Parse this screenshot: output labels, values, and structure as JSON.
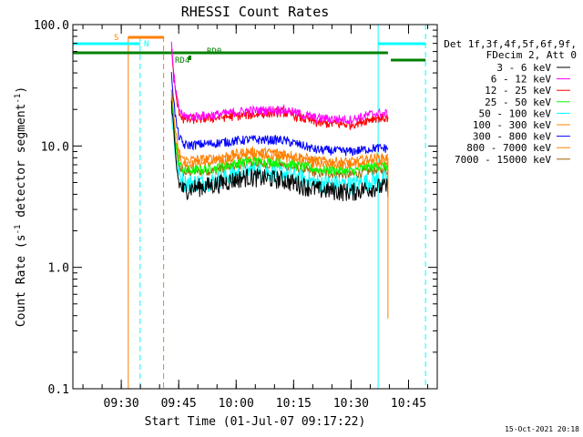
{
  "chart_data": {
    "type": "line",
    "title": "RHESSI Count Rates",
    "xlabel": "Start Time (01-Jul-07 09:17:22)",
    "ylabel_main": "Count Rate (s",
    "ylabel_sup": "-1",
    "ylabel_mid": " detector segment",
    "ylabel_sup2": "-1",
    "ylabel_end": ")",
    "yscale": "log",
    "ylim": [
      0.1,
      100.0
    ],
    "yticks": [
      {
        "value": 0.1,
        "label": "0.1"
      },
      {
        "value": 1.0,
        "label": "1.0"
      },
      {
        "value": 10.0,
        "label": "10.0"
      },
      {
        "value": 100.0,
        "label": "100.0"
      }
    ],
    "xlim": [
      "09:17:22",
      "10:52:30"
    ],
    "xticks": [
      {
        "time": "09:30",
        "label": "09:30"
      },
      {
        "time": "09:45",
        "label": "09:45"
      },
      {
        "time": "10:00",
        "label": "10:00"
      },
      {
        "time": "10:15",
        "label": "10:15"
      },
      {
        "time": "10:30",
        "label": "10:30"
      },
      {
        "time": "10:45",
        "label": "10:45"
      }
    ],
    "legend_header": [
      "Det 1f,3f,4f,5f,6f,9f,",
      "FDecim 2, Att 0"
    ],
    "legend_position": "right",
    "series": [
      {
        "name": "3 - 6 keV",
        "color": "#000000",
        "profile": [
          [
            9.72,
            6.0
          ],
          [
            9.75,
            4.2
          ],
          [
            9.8,
            4.5
          ],
          [
            9.9,
            4.8
          ],
          [
            10.05,
            5.6
          ],
          [
            10.2,
            5.3
          ],
          [
            10.35,
            4.4
          ],
          [
            10.5,
            4.2
          ],
          [
            10.6,
            4.6
          ]
        ]
      },
      {
        "name": "6 - 12 keV",
        "color": "#ff00ff",
        "profile": [
          [
            9.72,
            18
          ],
          [
            9.75,
            17.5
          ],
          [
            9.8,
            17.5
          ],
          [
            9.9,
            18
          ],
          [
            10.05,
            19.5
          ],
          [
            10.2,
            20
          ],
          [
            10.35,
            17
          ],
          [
            10.5,
            16.5
          ],
          [
            10.6,
            18.5
          ]
        ]
      },
      {
        "name": "12 - 25 keV",
        "color": "#ff0000",
        "profile": [
          [
            9.72,
            17
          ],
          [
            9.75,
            16.5
          ],
          [
            9.8,
            16.5
          ],
          [
            9.9,
            17
          ],
          [
            10.05,
            18
          ],
          [
            10.2,
            19
          ],
          [
            10.35,
            15.5
          ],
          [
            10.5,
            15
          ],
          [
            10.6,
            17
          ]
        ]
      },
      {
        "name": "25 - 50 keV",
        "color": "#00ff00",
        "profile": [
          [
            9.72,
            7
          ],
          [
            9.75,
            6.2
          ],
          [
            9.8,
            6.3
          ],
          [
            9.9,
            6.5
          ],
          [
            10.05,
            7.5
          ],
          [
            10.2,
            7.3
          ],
          [
            10.35,
            6.4
          ],
          [
            10.5,
            6.2
          ],
          [
            10.6,
            6.8
          ]
        ]
      },
      {
        "name": "50 - 100 keV",
        "color": "#00ffff",
        "profile": [
          [
            9.72,
            5.5
          ],
          [
            9.75,
            5.0
          ],
          [
            9.8,
            5.0
          ],
          [
            9.9,
            5.2
          ],
          [
            10.05,
            6.3
          ],
          [
            10.2,
            6.0
          ],
          [
            10.35,
            5.0
          ],
          [
            10.5,
            4.8
          ],
          [
            10.6,
            5.3
          ]
        ]
      },
      {
        "name": "100 - 300 keV",
        "color": "#ff8000",
        "profile": [
          [
            9.72,
            8.3
          ],
          [
            9.75,
            7.6
          ],
          [
            9.8,
            7.7
          ],
          [
            9.9,
            7.9
          ],
          [
            10.05,
            9.0
          ],
          [
            10.2,
            8.8
          ],
          [
            10.35,
            7.6
          ],
          [
            10.5,
            7.4
          ],
          [
            10.6,
            8.0
          ]
        ]
      },
      {
        "name": "300 - 800 keV",
        "color": "#0000ff",
        "profile": [
          [
            9.72,
            11
          ],
          [
            9.75,
            10.2
          ],
          [
            9.8,
            10.2
          ],
          [
            9.9,
            10.5
          ],
          [
            10.05,
            11.3
          ],
          [
            10.2,
            11.2
          ],
          [
            10.35,
            9.3
          ],
          [
            10.5,
            9.0
          ],
          [
            10.6,
            9.6
          ]
        ]
      },
      {
        "name": "800 - 7000 keV",
        "color": "#ff8000",
        "profile": [
          [
            9.72,
            7.5
          ],
          [
            9.75,
            7.0
          ],
          [
            9.8,
            7.1
          ],
          [
            9.9,
            7.3
          ],
          [
            10.05,
            8.3
          ],
          [
            10.2,
            8.1
          ],
          [
            10.35,
            7.0
          ],
          [
            10.5,
            6.8
          ],
          [
            10.6,
            7.3
          ]
        ]
      },
      {
        "name": "7000 - 15000 keV",
        "color": "#a06000",
        "profile": [
          [
            9.72,
            6.5
          ],
          [
            9.75,
            6.0
          ],
          [
            9.8,
            6.1
          ],
          [
            9.9,
            6.3
          ],
          [
            10.05,
            7.2
          ],
          [
            10.2,
            7.0
          ],
          [
            10.35,
            6.0
          ],
          [
            10.5,
            5.8
          ],
          [
            10.6,
            6.3
          ]
        ]
      }
    ],
    "flags": {
      "saa_label": "S",
      "night_label": "N",
      "rd0_label": "RD0",
      "rd4_label": "RD4"
    },
    "timestamp": "15-Oct-2021 20:18"
  },
  "colors": {
    "axis": "#000000",
    "cyan": "#00ffff",
    "orange": "#ff8000",
    "green": "#008000"
  }
}
